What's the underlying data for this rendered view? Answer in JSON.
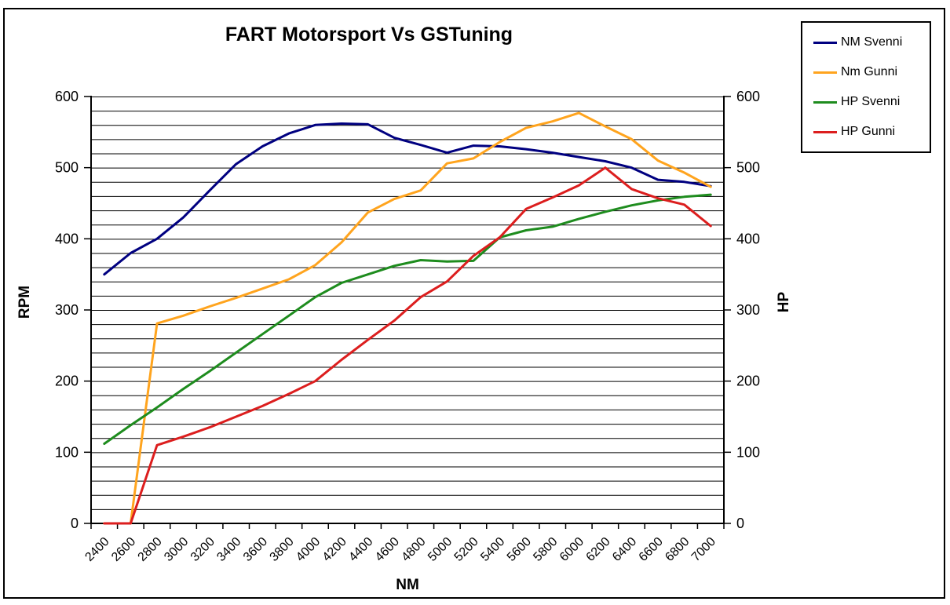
{
  "chart_data": {
    "type": "line",
    "title": "FART Motorsport Vs GSTuning",
    "xlabel": "NM",
    "ylabel": "RPM",
    "ylabel_right": "HP",
    "ylim": [
      0,
      600
    ],
    "y_tick_step": 100,
    "grid_step": 20,
    "grid": true,
    "legend_position": "top-right",
    "x": [
      2400,
      2600,
      2800,
      3000,
      3200,
      3400,
      3600,
      3800,
      4000,
      4200,
      4400,
      4600,
      4800,
      5000,
      5200,
      5400,
      5600,
      5800,
      6000,
      6200,
      6400,
      6600,
      6800,
      7000
    ],
    "y_ticks": [
      "0",
      "100",
      "200",
      "300",
      "400",
      "500",
      "600"
    ],
    "series": [
      {
        "name": "NM Svenni",
        "color": "#000080",
        "values": [
          350,
          380,
          400,
          430,
          468,
          505,
          530,
          548,
          560,
          562,
          561,
          542,
          532,
          521,
          531,
          530,
          526,
          521,
          515,
          509,
          500,
          483,
          480,
          474
        ]
      },
      {
        "name": "Nm Gunni",
        "color": "#FFA41E",
        "values": [
          0,
          0,
          281,
          292,
          305,
          317,
          330,
          343,
          363,
          395,
          437,
          456,
          468,
          506,
          513,
          536,
          556,
          565,
          577,
          558,
          540,
          510,
          493,
          473
        ]
      },
      {
        "name": "HP Svenni",
        "color": "#1E8C1E",
        "values": [
          112,
          138,
          163,
          189,
          214,
          240,
          266,
          292,
          318,
          338,
          350,
          362,
          370,
          368,
          369,
          402,
          412,
          417,
          428,
          438,
          447,
          454,
          459,
          462
        ]
      },
      {
        "name": "HP Gunni",
        "color": "#DC1E1E",
        "values": [
          0,
          0,
          110,
          122,
          135,
          150,
          165,
          182,
          200,
          230,
          258,
          285,
          318,
          340,
          376,
          402,
          442,
          458,
          475,
          500,
          470,
          457,
          448,
          418
        ]
      }
    ]
  },
  "legend": {
    "items": [
      {
        "label": "NM Svenni",
        "color": "#000080"
      },
      {
        "label": "Nm Gunni",
        "color": "#FFA41E"
      },
      {
        "label": "HP Svenni",
        "color": "#1E8C1E"
      },
      {
        "label": "HP Gunni",
        "color": "#DC1E1E"
      }
    ]
  }
}
